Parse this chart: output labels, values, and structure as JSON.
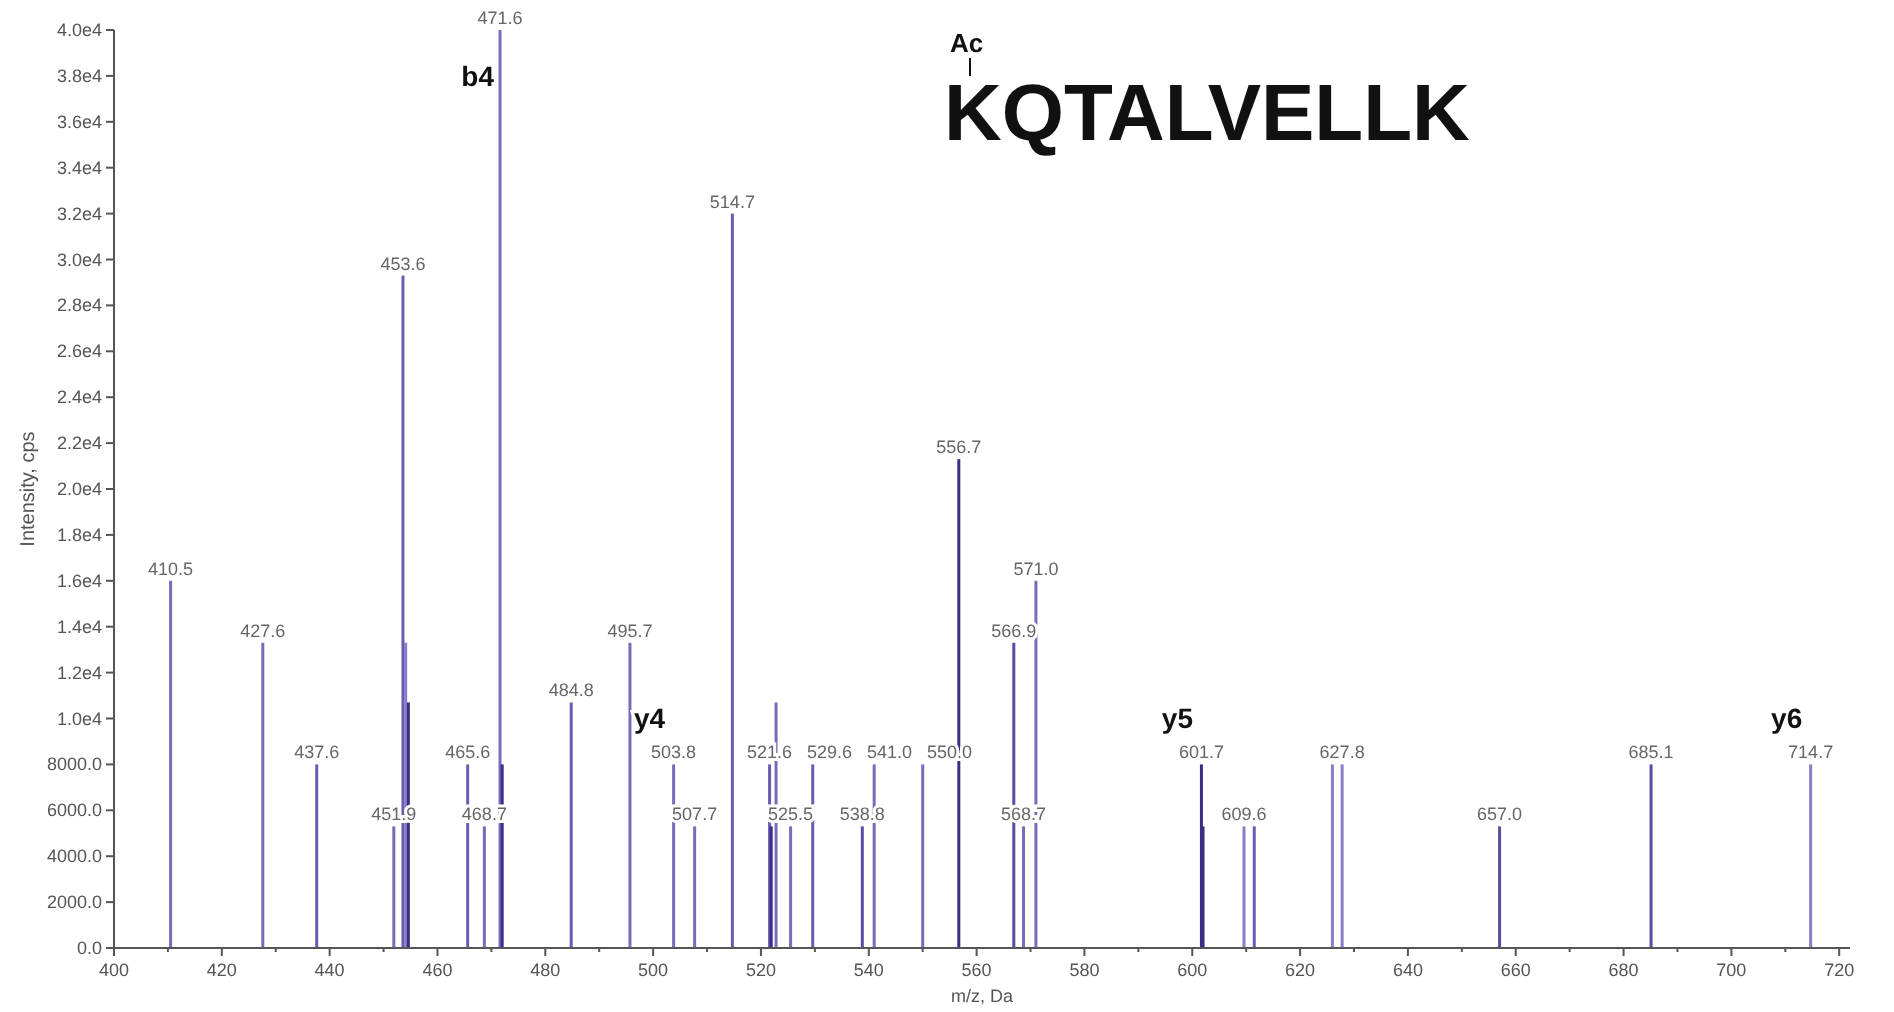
{
  "chart_data": {
    "type": "bar",
    "title": "KQTALVELLK",
    "xlabel": "m/z, Da",
    "ylabel": "Intensity, cps",
    "x": [
      410.5,
      427.6,
      437.6,
      451.9,
      453.6,
      454.1,
      454.6,
      465.6,
      468.7,
      471.6,
      472.0,
      484.8,
      495.7,
      503.8,
      507.7,
      514.7,
      521.6,
      521.9,
      522.8,
      525.5,
      529.6,
      538.8,
      541.0,
      550.0,
      556.7,
      566.9,
      568.7,
      571.0,
      601.7,
      602.0,
      609.6,
      611.5,
      626.0,
      627.8,
      657.0,
      685.1,
      714.7
    ],
    "values": [
      16000,
      13300,
      8000,
      5300,
      29300,
      13300,
      10700,
      8000,
      5300,
      40000,
      8000,
      10700,
      13300,
      8000,
      5300,
      32000,
      8000,
      5300,
      10700,
      5300,
      8000,
      5300,
      8000,
      8000,
      21300,
      13300,
      5300,
      16000,
      8000,
      5300,
      5300,
      5300,
      8000,
      8000,
      5300,
      8000,
      8000
    ],
    "colors": [
      "#7a6cbc",
      "#7a6cbc",
      "#6a5cb0",
      "#7a6cbc",
      "#6a5cb0",
      "#8a7cc8",
      "#3d2c85",
      "#6a5cb0",
      "#7a6cbc",
      "#7a6cbc",
      "#3d2c85",
      "#6a5cb0",
      "#7a6cbc",
      "#7a6cbc",
      "#7a6cbc",
      "#6a5cb0",
      "#6a5cb0",
      "#3d2c85",
      "#7a6cbc",
      "#7a6cbc",
      "#6a5cb0",
      "#5a4ca4",
      "#7a6cbc",
      "#7a6cbc",
      "#3d2c85",
      "#5a4ca4",
      "#7a6cbc",
      "#7a6cbc",
      "#3d2c85",
      "#3d2c85",
      "#8a7cc8",
      "#6a5cb0",
      "#8a7cc8",
      "#8a7cc8",
      "#5a4ca4",
      "#5a4ca4",
      "#8a7cc8"
    ],
    "xlim": [
      400,
      722
    ],
    "ylim": [
      0,
      40000
    ],
    "xticks": [
      400,
      {
        "value": 410,
        "label": null
      },
      420,
      {
        "value": 430,
        "label": null
      },
      440,
      {
        "value": 450,
        "label": null
      },
      460,
      {
        "value": 470,
        "label": null
      },
      480,
      {
        "value": 490,
        "label": null
      },
      500,
      {
        "value": 510,
        "label": null
      },
      520,
      {
        "value": 530,
        "label": null
      },
      540,
      {
        "value": 550,
        "label": null
      },
      560,
      {
        "value": 570,
        "label": null
      },
      580,
      {
        "value": 590,
        "label": null
      },
      600,
      {
        "value": 610,
        "label": null
      },
      620,
      {
        "value": 630,
        "label": null
      },
      640,
      {
        "value": 650,
        "label": null
      },
      660,
      {
        "value": 670,
        "label": null
      },
      680,
      {
        "value": 690,
        "label": null
      },
      700,
      {
        "value": 710,
        "label": null
      },
      720
    ],
    "yticks": [
      {
        "value": 0,
        "label": "0.0"
      },
      {
        "value": 2000,
        "label": "2000.0"
      },
      {
        "value": 4000,
        "label": "4000.0"
      },
      {
        "value": 6000,
        "label": "6000.0"
      },
      {
        "value": 8000,
        "label": "8000.0"
      },
      {
        "value": 10000,
        "label": "1.0e4"
      },
      {
        "value": 12000,
        "label": "1.2e4"
      },
      {
        "value": 14000,
        "label": "1.4e4"
      },
      {
        "value": 16000,
        "label": "1.6e4"
      },
      {
        "value": 18000,
        "label": "1.8e4"
      },
      {
        "value": 20000,
        "label": "2.0e4"
      },
      {
        "value": 22000,
        "label": "2.2e4"
      },
      {
        "value": 24000,
        "label": "2.4e4"
      },
      {
        "value": 26000,
        "label": "2.6e4"
      },
      {
        "value": 28000,
        "label": "2.8e4"
      },
      {
        "value": 30000,
        "label": "3.0e4"
      },
      {
        "value": 32000,
        "label": "3.2e4"
      },
      {
        "value": 34000,
        "label": "3.4e4"
      },
      {
        "value": 36000,
        "label": "3.6e4"
      },
      {
        "value": 38000,
        "label": "3.8e4"
      },
      {
        "value": 40000,
        "label": "4.0e4"
      }
    ],
    "annotations": [
      "Ac",
      {
        "text": "410.5",
        "x": 410.5,
        "y": 16000
      },
      {
        "text": "427.6",
        "x": 427.6,
        "y": 13300
      },
      {
        "text": "437.6",
        "x": 437.6,
        "y": 8000
      },
      {
        "text": "451.9",
        "x": 451.9,
        "y": 5300
      },
      {
        "text": "453.6",
        "x": 453.6,
        "y": 29300
      },
      {
        "text": "465.6",
        "x": 465.6,
        "y": 8000
      },
      {
        "text": "468.7",
        "x": 468.7,
        "y": 5300
      },
      {
        "text": "471.6",
        "x": 471.6,
        "y": 40000
      },
      {
        "text": "484.8",
        "x": 484.8,
        "y": 10700
      },
      {
        "text": "495.7",
        "x": 495.7,
        "y": 13300
      },
      {
        "text": "503.8",
        "x": 503.8,
        "y": 8000
      },
      {
        "text": "507.7",
        "x": 507.7,
        "y": 5300
      },
      {
        "text": "514.7",
        "x": 514.7,
        "y": 32000
      },
      {
        "text": "521.6",
        "x": 521.6,
        "y": 8000
      },
      {
        "text": "525.5",
        "x": 525.5,
        "y": 5300
      },
      {
        "text": "529.6",
        "x": 529.6,
        "y": 8000
      },
      {
        "text": "538.8",
        "x": 538.8,
        "y": 5300
      },
      {
        "text": "541.0",
        "x": 541.0,
        "y": 8000
      },
      {
        "text": "550.0",
        "x": 550.0,
        "y": 8000
      },
      {
        "text": "556.7",
        "x": 556.7,
        "y": 21300
      },
      {
        "text": "566.9",
        "x": 566.9,
        "y": 13300
      },
      {
        "text": "568.7",
        "x": 568.7,
        "y": 5300
      },
      {
        "text": "571.0",
        "x": 571.0,
        "y": 16000
      },
      {
        "text": "601.7",
        "x": 601.7,
        "y": 8000
      },
      {
        "text": "609.6",
        "x": 609.6,
        "y": 5300
      },
      {
        "text": "627.8",
        "x": 627.8,
        "y": 8000
      },
      {
        "text": "657.0",
        "x": 657.0,
        "y": 5300
      },
      {
        "text": "685.1",
        "x": 685.1,
        "y": 8000
      },
      {
        "text": "714.7",
        "x": 714.7,
        "y": 8000
      },
      {
        "text": "b4",
        "x": 471.6,
        "y": 40000
      },
      {
        "text": "y4",
        "x": 503.8,
        "y": 8000
      },
      {
        "text": "y5",
        "x": 601.7,
        "y": 8000
      },
      {
        "text": "y6",
        "x": 714.7,
        "y": 8000
      }
    ]
  }
}
